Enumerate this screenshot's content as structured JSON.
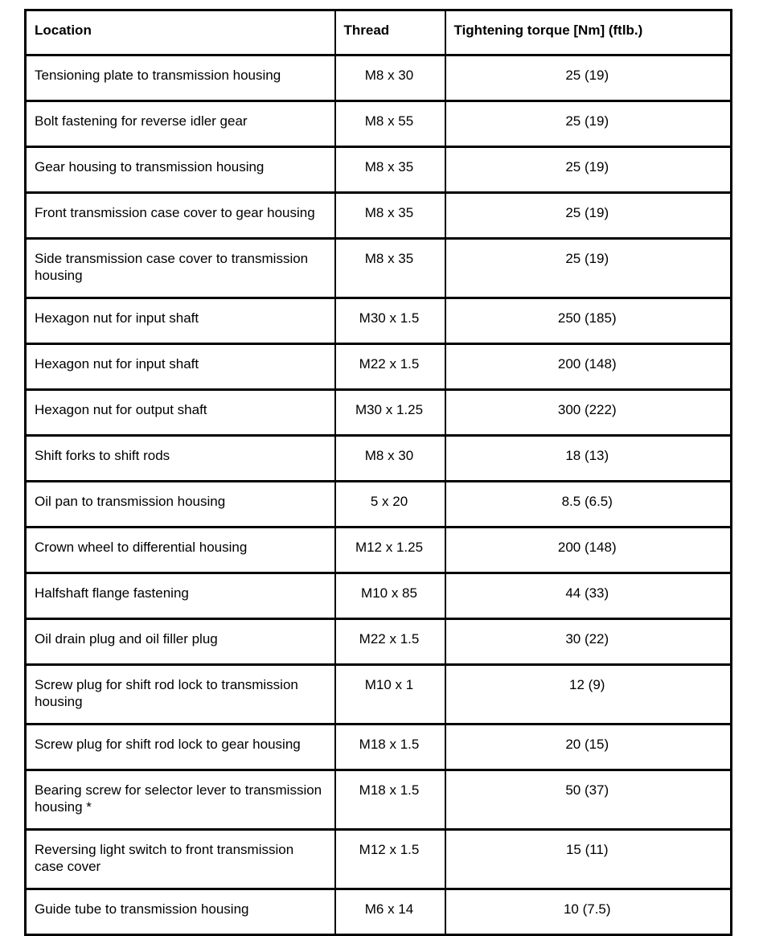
{
  "table": {
    "headers": {
      "location": "Location",
      "thread": "Thread",
      "torque": "Tightening torque [Nm] (ftlb.)"
    },
    "rows": [
      {
        "location": "Tensioning plate to transmission housing",
        "thread": "M8 x 30",
        "torque": "25 (19)"
      },
      {
        "location": "Bolt fastening for reverse idler gear",
        "thread": "M8 x 55",
        "torque": "25 (19)"
      },
      {
        "location": "Gear housing to transmission housing",
        "thread": "M8 x 35",
        "torque": "25 (19)"
      },
      {
        "location": "Front transmission case cover to gear housing",
        "thread": "M8 x 35",
        "torque": "25 (19)"
      },
      {
        "location": "Side transmission case cover to transmission housing",
        "thread": "M8 x 35",
        "torque": "25 (19)"
      },
      {
        "location": "Hexagon nut for input shaft",
        "thread": "M30 x 1.5",
        "torque": "250 (185)"
      },
      {
        "location": "Hexagon nut for input shaft",
        "thread": "M22 x 1.5",
        "torque": "200 (148)"
      },
      {
        "location": "Hexagon nut for output shaft",
        "thread": "M30 x 1.25",
        "torque": "300 (222)"
      },
      {
        "location": "Shift forks to shift rods",
        "thread": "M8 x 30",
        "torque": "18 (13)"
      },
      {
        "location": "Oil pan to transmission housing",
        "thread": "5 x 20",
        "torque": "8.5 (6.5)"
      },
      {
        "location": "Crown wheel to differential housing",
        "thread": "M12 x 1.25",
        "torque": "200 (148)"
      },
      {
        "location": "Halfshaft flange fastening",
        "thread": "M10 x 85",
        "torque": "44 (33)"
      },
      {
        "location": "Oil drain plug and oil filler plug",
        "thread": "M22 x 1.5",
        "torque": "30 (22)"
      },
      {
        "location": "Screw plug for shift rod lock to transmission housing",
        "thread": "M10 x 1",
        "torque": "12 (9)"
      },
      {
        "location": "Screw plug for shift rod lock to gear housing",
        "thread": "M18 x 1.5",
        "torque": "20 (15)"
      },
      {
        "location": "Bearing screw for selector lever to transmission housing *",
        "thread": "M18 x 1.5",
        "torque": "50 (37)"
      },
      {
        "location": "Reversing light switch to front transmission case cover",
        "thread": "M12 x 1.5",
        "torque": "15 (11)"
      },
      {
        "location": "Guide tube to transmission housing",
        "thread": "M6 x 14",
        "torque": "10 (7.5)"
      }
    ]
  },
  "colors": {
    "border": "#000000",
    "background": "#ffffff",
    "text": "#000000"
  }
}
